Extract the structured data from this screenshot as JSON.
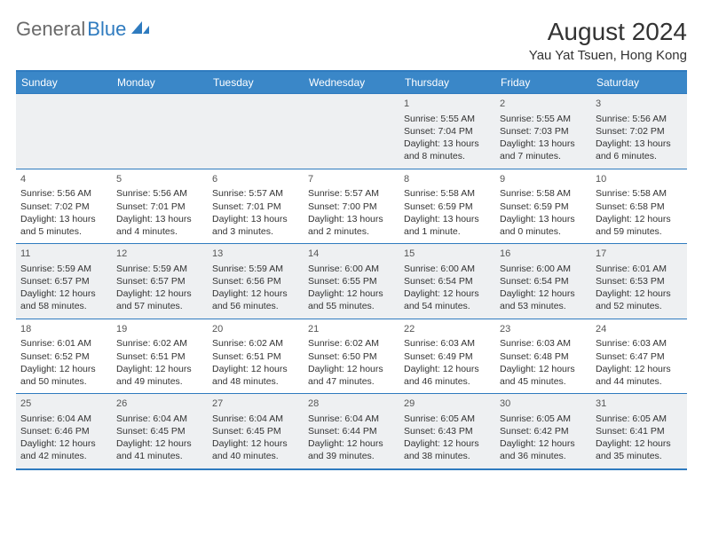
{
  "logo": {
    "general": "General",
    "blue": "Blue"
  },
  "title": "August 2024",
  "location": "Yau Yat Tsuen, Hong Kong",
  "weekdays": [
    "Sunday",
    "Monday",
    "Tuesday",
    "Wednesday",
    "Thursday",
    "Friday",
    "Saturday"
  ],
  "colors": {
    "accent": "#3a87c8",
    "border": "#2f7bbf",
    "row_alt": "#eef0f2",
    "text": "#333333",
    "logo_gray": "#6a6a6a"
  },
  "weeks": [
    [
      {
        "day": "",
        "sunrise": "",
        "sunset": "",
        "daylight": ""
      },
      {
        "day": "",
        "sunrise": "",
        "sunset": "",
        "daylight": ""
      },
      {
        "day": "",
        "sunrise": "",
        "sunset": "",
        "daylight": ""
      },
      {
        "day": "",
        "sunrise": "",
        "sunset": "",
        "daylight": ""
      },
      {
        "day": "1",
        "sunrise": "Sunrise: 5:55 AM",
        "sunset": "Sunset: 7:04 PM",
        "daylight": "Daylight: 13 hours and 8 minutes."
      },
      {
        "day": "2",
        "sunrise": "Sunrise: 5:55 AM",
        "sunset": "Sunset: 7:03 PM",
        "daylight": "Daylight: 13 hours and 7 minutes."
      },
      {
        "day": "3",
        "sunrise": "Sunrise: 5:56 AM",
        "sunset": "Sunset: 7:02 PM",
        "daylight": "Daylight: 13 hours and 6 minutes."
      }
    ],
    [
      {
        "day": "4",
        "sunrise": "Sunrise: 5:56 AM",
        "sunset": "Sunset: 7:02 PM",
        "daylight": "Daylight: 13 hours and 5 minutes."
      },
      {
        "day": "5",
        "sunrise": "Sunrise: 5:56 AM",
        "sunset": "Sunset: 7:01 PM",
        "daylight": "Daylight: 13 hours and 4 minutes."
      },
      {
        "day": "6",
        "sunrise": "Sunrise: 5:57 AM",
        "sunset": "Sunset: 7:01 PM",
        "daylight": "Daylight: 13 hours and 3 minutes."
      },
      {
        "day": "7",
        "sunrise": "Sunrise: 5:57 AM",
        "sunset": "Sunset: 7:00 PM",
        "daylight": "Daylight: 13 hours and 2 minutes."
      },
      {
        "day": "8",
        "sunrise": "Sunrise: 5:58 AM",
        "sunset": "Sunset: 6:59 PM",
        "daylight": "Daylight: 13 hours and 1 minute."
      },
      {
        "day": "9",
        "sunrise": "Sunrise: 5:58 AM",
        "sunset": "Sunset: 6:59 PM",
        "daylight": "Daylight: 13 hours and 0 minutes."
      },
      {
        "day": "10",
        "sunrise": "Sunrise: 5:58 AM",
        "sunset": "Sunset: 6:58 PM",
        "daylight": "Daylight: 12 hours and 59 minutes."
      }
    ],
    [
      {
        "day": "11",
        "sunrise": "Sunrise: 5:59 AM",
        "sunset": "Sunset: 6:57 PM",
        "daylight": "Daylight: 12 hours and 58 minutes."
      },
      {
        "day": "12",
        "sunrise": "Sunrise: 5:59 AM",
        "sunset": "Sunset: 6:57 PM",
        "daylight": "Daylight: 12 hours and 57 minutes."
      },
      {
        "day": "13",
        "sunrise": "Sunrise: 5:59 AM",
        "sunset": "Sunset: 6:56 PM",
        "daylight": "Daylight: 12 hours and 56 minutes."
      },
      {
        "day": "14",
        "sunrise": "Sunrise: 6:00 AM",
        "sunset": "Sunset: 6:55 PM",
        "daylight": "Daylight: 12 hours and 55 minutes."
      },
      {
        "day": "15",
        "sunrise": "Sunrise: 6:00 AM",
        "sunset": "Sunset: 6:54 PM",
        "daylight": "Daylight: 12 hours and 54 minutes."
      },
      {
        "day": "16",
        "sunrise": "Sunrise: 6:00 AM",
        "sunset": "Sunset: 6:54 PM",
        "daylight": "Daylight: 12 hours and 53 minutes."
      },
      {
        "day": "17",
        "sunrise": "Sunrise: 6:01 AM",
        "sunset": "Sunset: 6:53 PM",
        "daylight": "Daylight: 12 hours and 52 minutes."
      }
    ],
    [
      {
        "day": "18",
        "sunrise": "Sunrise: 6:01 AM",
        "sunset": "Sunset: 6:52 PM",
        "daylight": "Daylight: 12 hours and 50 minutes."
      },
      {
        "day": "19",
        "sunrise": "Sunrise: 6:02 AM",
        "sunset": "Sunset: 6:51 PM",
        "daylight": "Daylight: 12 hours and 49 minutes."
      },
      {
        "day": "20",
        "sunrise": "Sunrise: 6:02 AM",
        "sunset": "Sunset: 6:51 PM",
        "daylight": "Daylight: 12 hours and 48 minutes."
      },
      {
        "day": "21",
        "sunrise": "Sunrise: 6:02 AM",
        "sunset": "Sunset: 6:50 PM",
        "daylight": "Daylight: 12 hours and 47 minutes."
      },
      {
        "day": "22",
        "sunrise": "Sunrise: 6:03 AM",
        "sunset": "Sunset: 6:49 PM",
        "daylight": "Daylight: 12 hours and 46 minutes."
      },
      {
        "day": "23",
        "sunrise": "Sunrise: 6:03 AM",
        "sunset": "Sunset: 6:48 PM",
        "daylight": "Daylight: 12 hours and 45 minutes."
      },
      {
        "day": "24",
        "sunrise": "Sunrise: 6:03 AM",
        "sunset": "Sunset: 6:47 PM",
        "daylight": "Daylight: 12 hours and 44 minutes."
      }
    ],
    [
      {
        "day": "25",
        "sunrise": "Sunrise: 6:04 AM",
        "sunset": "Sunset: 6:46 PM",
        "daylight": "Daylight: 12 hours and 42 minutes."
      },
      {
        "day": "26",
        "sunrise": "Sunrise: 6:04 AM",
        "sunset": "Sunset: 6:45 PM",
        "daylight": "Daylight: 12 hours and 41 minutes."
      },
      {
        "day": "27",
        "sunrise": "Sunrise: 6:04 AM",
        "sunset": "Sunset: 6:45 PM",
        "daylight": "Daylight: 12 hours and 40 minutes."
      },
      {
        "day": "28",
        "sunrise": "Sunrise: 6:04 AM",
        "sunset": "Sunset: 6:44 PM",
        "daylight": "Daylight: 12 hours and 39 minutes."
      },
      {
        "day": "29",
        "sunrise": "Sunrise: 6:05 AM",
        "sunset": "Sunset: 6:43 PM",
        "daylight": "Daylight: 12 hours and 38 minutes."
      },
      {
        "day": "30",
        "sunrise": "Sunrise: 6:05 AM",
        "sunset": "Sunset: 6:42 PM",
        "daylight": "Daylight: 12 hours and 36 minutes."
      },
      {
        "day": "31",
        "sunrise": "Sunrise: 6:05 AM",
        "sunset": "Sunset: 6:41 PM",
        "daylight": "Daylight: 12 hours and 35 minutes."
      }
    ]
  ]
}
